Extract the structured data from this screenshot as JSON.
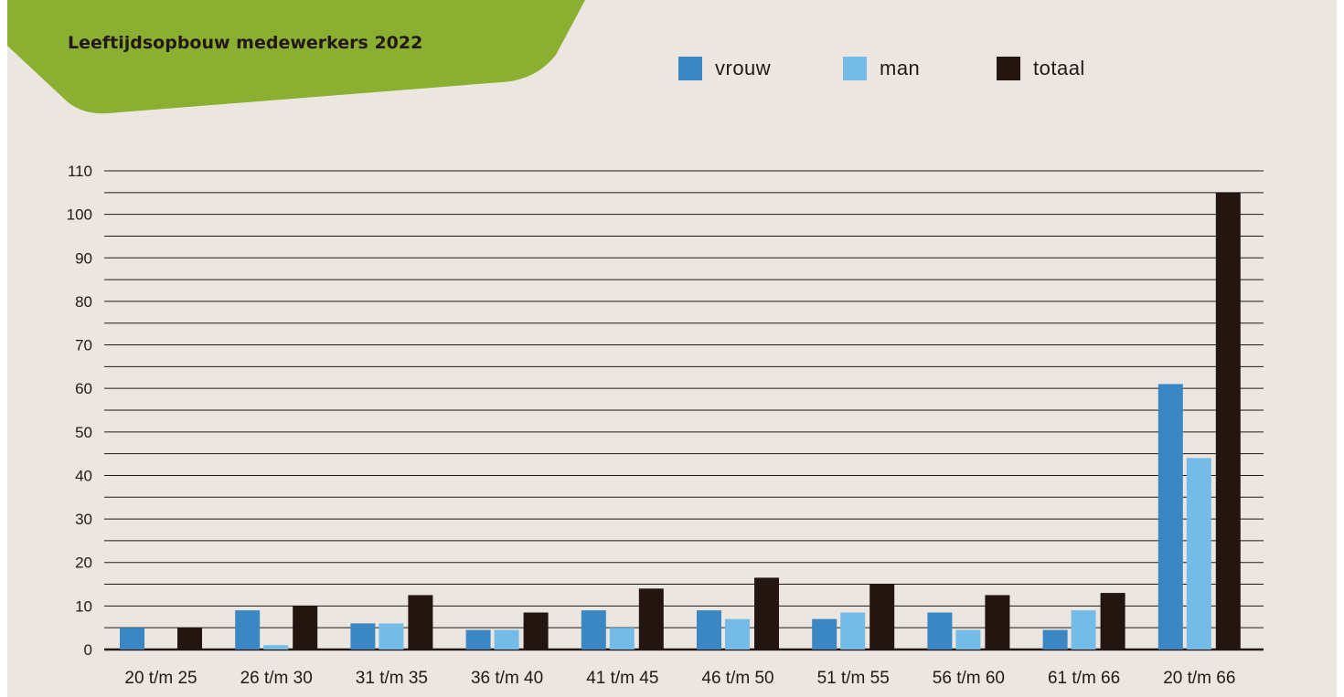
{
  "chart_data": {
    "type": "bar",
    "title": "Leeftijdsopbouw medewerkers 2022",
    "xlabel": "",
    "ylabel": "",
    "categories": [
      "20 t/m 25",
      "26 t/m 30",
      "31 t/m 35",
      "36 t/m 40",
      "41 t/m 45",
      "46 t/m 50",
      "51 t/m 55",
      "56 t/m 60",
      "61 t/m 66",
      "20 t/m 66"
    ],
    "series": [
      {
        "name": "vrouw",
        "color": "#3a87c3",
        "values": [
          5,
          9,
          6,
          4.5,
          9,
          9,
          7,
          8.5,
          4.5,
          61
        ]
      },
      {
        "name": "man",
        "color": "#74bce7",
        "values": [
          0,
          1,
          6,
          4.5,
          5,
          7,
          8.5,
          4.5,
          9,
          44
        ]
      },
      {
        "name": "totaal",
        "color": "#231510",
        "values": [
          5,
          10,
          12.5,
          8.5,
          14,
          16.5,
          15,
          12.5,
          13,
          105
        ]
      }
    ],
    "ylim": [
      0,
      110
    ],
    "yticks": [
      "0",
      "10",
      "20",
      "30",
      "40",
      "50",
      "60",
      "70",
      "80",
      "90",
      "100",
      "110"
    ],
    "grid": true,
    "legend": "top-right",
    "title_bg_color": "#8baf31"
  }
}
